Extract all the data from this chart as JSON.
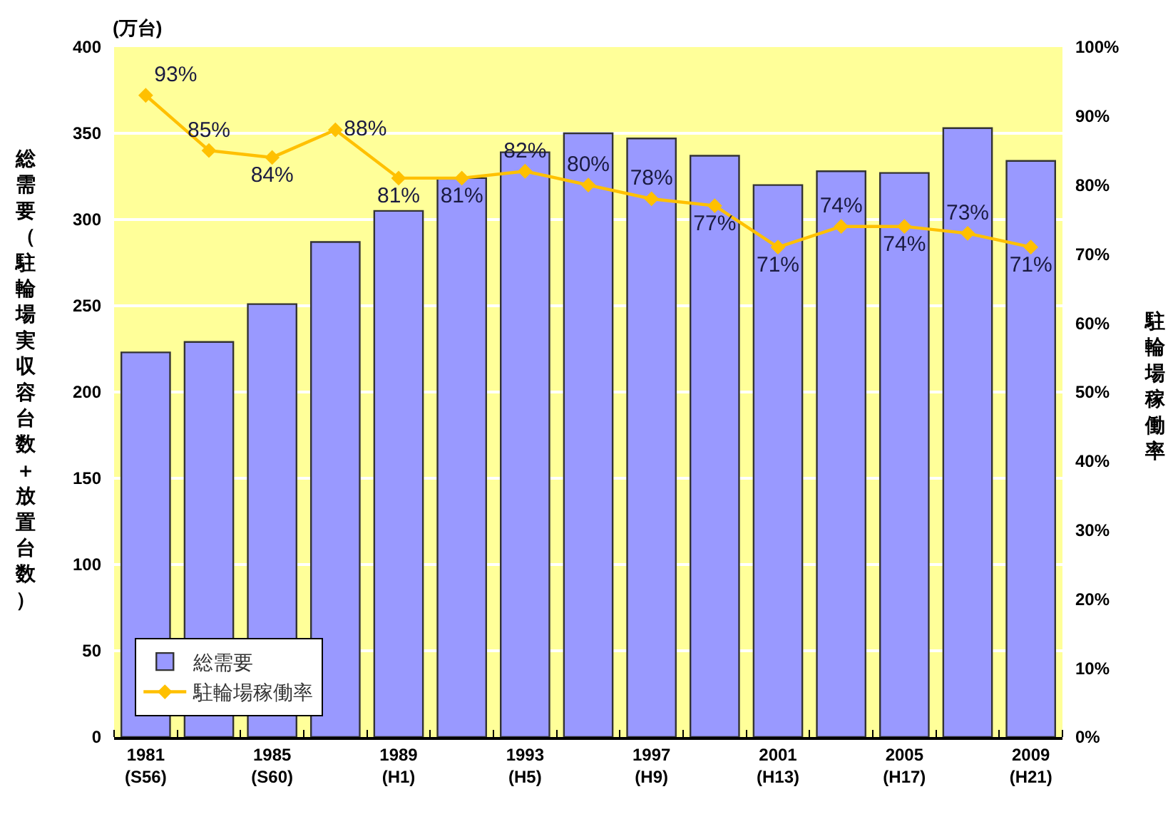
{
  "chart_data": {
    "type": "bar",
    "categories": [
      "1981\n(S56)",
      null,
      "1985\n(S60)",
      null,
      "1989\n(H1)",
      null,
      "1993\n(H5)",
      null,
      "1997\n(H9)",
      null,
      "2001\n(H13)",
      null,
      "2005\n(H17)",
      null,
      "2009\n(H21)"
    ],
    "ylabel": "総需要（駐輪場実収容台数＋放置台数）",
    "y2label": "駐輪場稼働率",
    "annotations": [
      "(万台)"
    ],
    "ylim": [
      0,
      400
    ],
    "yticks": [
      0,
      50,
      100,
      150,
      200,
      250,
      300,
      350,
      400
    ],
    "y2lim": [
      0,
      100
    ],
    "y2ticks": [
      {
        "value": 0,
        "label": "0%"
      },
      {
        "value": 10,
        "label": "10%"
      },
      {
        "value": 20,
        "label": "20%"
      },
      {
        "value": 30,
        "label": "30%"
      },
      {
        "value": 40,
        "label": "40%"
      },
      {
        "value": 50,
        "label": "50%"
      },
      {
        "value": 60,
        "label": "60%"
      },
      {
        "value": 70,
        "label": "70%"
      },
      {
        "value": 80,
        "label": "80%"
      },
      {
        "value": 90,
        "label": "90%"
      },
      {
        "value": 100,
        "label": "100%"
      }
    ],
    "grid": "y",
    "legend": "bottom left",
    "series": [
      {
        "name": "総需要",
        "color": "#9999ff",
        "values": [
          223,
          229,
          251,
          287,
          305,
          324,
          339,
          350,
          347,
          337,
          320,
          328,
          327,
          353,
          334
        ]
      },
      {
        "name": "駐輪場稼働率",
        "type": "line",
        "axis": "y2",
        "color": "#ffc000",
        "marker": "diamond",
        "values": [
          93,
          85,
          84,
          88,
          81,
          81,
          82,
          80,
          78,
          77,
          71,
          74,
          74,
          73,
          71
        ],
        "value_labels": [
          "93%",
          "85%",
          "84%",
          "88%",
          "81%",
          "81%",
          "82%",
          "80%",
          "78%",
          "77%",
          "71%",
          "74%",
          "74%",
          "73%",
          "71%"
        ]
      }
    ]
  }
}
